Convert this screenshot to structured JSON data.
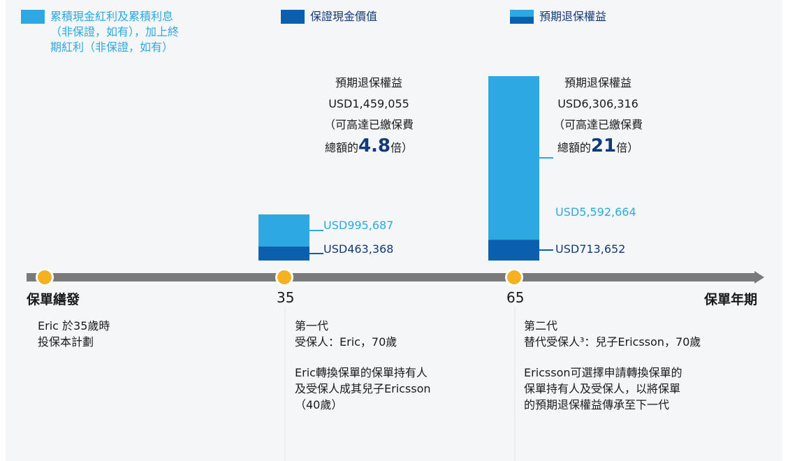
{
  "legend": {
    "cumulative_label_line1": "累積現金紅利及累積利息",
    "cumulative_label_line2": "（非保證，如有），加上終",
    "cumulative_label_line3": "期紅利（非保證，如有）",
    "guaranteed_label": "保證現金價值",
    "surrender_label": "預期退保權益"
  },
  "colors": {
    "light_blue": "#2ea8e0",
    "dark_blue": "#0a5fae",
    "axis_gray": "#7a7a7a",
    "dot_orange": "#f4b223",
    "navy_text": "#123a78"
  },
  "annotations": [
    {
      "title": "預期退保權益",
      "amount": "USD1,459,055",
      "line3": "（可高達已繳保費",
      "prefix": "總額的",
      "multiple": "4.8",
      "suffix": "倍）"
    },
    {
      "title": "預期退保權益",
      "amount": "USD6,306,316",
      "line3": "（可高達已繳保費",
      "prefix": "總額的",
      "multiple": "21",
      "suffix": "倍）"
    }
  ],
  "axis": {
    "start_label": "保單繕發",
    "end_label": "保單年期",
    "tick_35": "35",
    "tick_65": "65"
  },
  "chart_data": {
    "type": "bar",
    "stacked": true,
    "categories": [
      "35",
      "65"
    ],
    "series": [
      {
        "name": "保證現金價值",
        "values": [
          463368,
          713652
        ],
        "labels": [
          "USD463,368",
          "USD713,652"
        ],
        "color": "#0a5fae"
      },
      {
        "name": "累積現金紅利及累積利息（非保證，如有），加上終期紅利（非保證，如有）",
        "values": [
          995687,
          5592664
        ],
        "labels": [
          "USD995,687",
          "USD5,592,664"
        ],
        "color": "#2ea8e0"
      }
    ],
    "totals": [
      1459055,
      6306316
    ],
    "ylim": [
      0,
      6306316
    ]
  },
  "descriptions": {
    "start": [
      "Eric 於35歲時",
      "投保本計劃"
    ],
    "mid_a": [
      "第一代",
      "受保人：Eric，70歲"
    ],
    "mid_b": [
      "Eric轉換保單的保單持有人",
      "及受保人成其兒子Ericsson",
      "（40歲）"
    ],
    "end_a": [
      "第二代",
      "替代受保人³：兒子Ericsson，70歲"
    ],
    "end_b": [
      "Ericsson可選擇申請轉換保單的",
      "保單持有人及受保人，以將保單",
      "的預期退保權益傳承至下一代"
    ]
  }
}
